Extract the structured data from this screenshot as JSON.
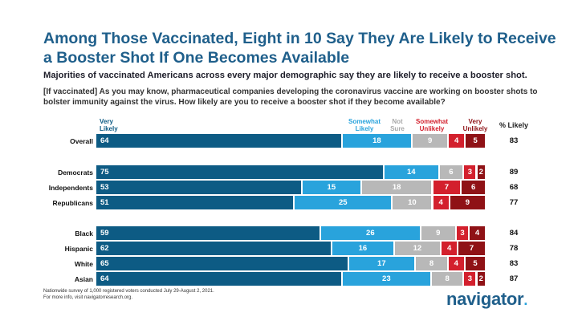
{
  "title": "Among Those Vaccinated, Eight in 10 Say They Are Likely to Receive a Booster Shot If One Becomes Available",
  "subtitle": "Majorities of vaccinated Americans across every major demographic say they are likely to receive a booster shot.",
  "question": "[If vaccinated] As you may know, pharmaceutical companies developing the coronavirus vaccine are working on booster shots to bolster immunity against the virus. How likely are you to receive a booster shot if they become available?",
  "footnote": [
    "Nationwide survey of 1,000 registered voters conducted July 29-August 2, 2021.",
    "For more info, visit navigatorresearch.org."
  ],
  "logo": "navigator",
  "colors": {
    "very_likely": "#0d5b84",
    "somewhat_likely": "#29a3dc",
    "not_sure": "#b8b8b8",
    "somewhat_unlikely": "#d3202d",
    "very_unlikely": "#8f1216"
  },
  "chart_data": {
    "type": "bar",
    "orientation": "horizontal-stacked",
    "headers": {
      "very_likely": [
        "Very",
        "Likely"
      ],
      "somewhat_likely": [
        "Somewhat",
        "Likely"
      ],
      "not_sure": [
        "Not",
        "Sure"
      ],
      "somewhat_unlikely": [
        "Somewhat",
        "Unlikely"
      ],
      "very_unlikely": [
        "Very",
        "Unlikely"
      ],
      "pct_likely": "% Likely"
    },
    "series_keys": [
      "very_likely",
      "somewhat_likely",
      "not_sure",
      "somewhat_unlikely",
      "very_unlikely"
    ],
    "rows": [
      {
        "label": "Overall",
        "values": [
          64,
          18,
          9,
          4,
          5
        ],
        "pct_likely": 83
      },
      {
        "label": "Democrats",
        "values": [
          75,
          14,
          6,
          3,
          2
        ],
        "pct_likely": 89
      },
      {
        "label": "Independents",
        "values": [
          53,
          15,
          18,
          7,
          6
        ],
        "pct_likely": 68
      },
      {
        "label": "Republicans",
        "values": [
          51,
          25,
          10,
          4,
          9
        ],
        "pct_likely": 77
      },
      {
        "label": "Black",
        "values": [
          59,
          26,
          9,
          3,
          4
        ],
        "pct_likely": 84
      },
      {
        "label": "Hispanic",
        "values": [
          62,
          16,
          12,
          4,
          7
        ],
        "pct_likely": 78
      },
      {
        "label": "White",
        "values": [
          65,
          17,
          8,
          4,
          5
        ],
        "pct_likely": 83
      },
      {
        "label": "Asian",
        "values": [
          64,
          23,
          8,
          3,
          2
        ],
        "pct_likely": 87
      }
    ]
  }
}
